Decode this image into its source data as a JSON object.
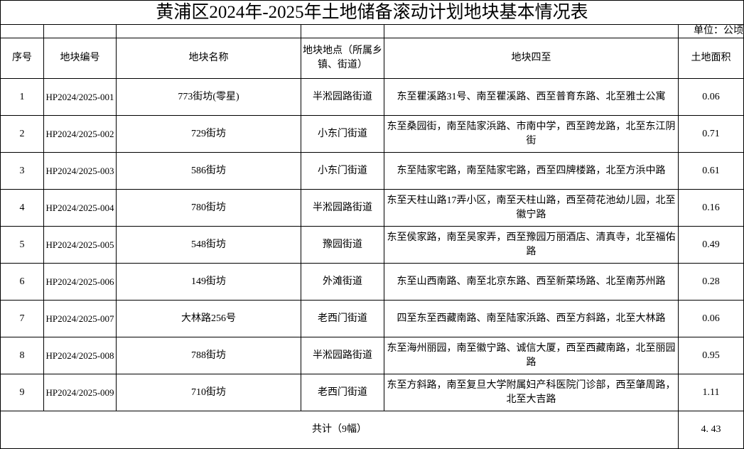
{
  "title": "黄浦区2024年-2025年土地储备滚动计划地块基本情况表",
  "unit": "单位：公顷",
  "headers": {
    "index": "序号",
    "code": "地块编号",
    "name": "地块名称",
    "location": "地块地点（所属乡镇、街道）",
    "boundaries": "地块四至",
    "area": "土地面积"
  },
  "rows": [
    {
      "index": "1",
      "code": "HP2024/2025-001",
      "name": "773街坊(零星)",
      "location": "半淞园路街道",
      "boundaries": "东至瞿溪路31号、南至瞿溪路、西至普育东路、北至雅士公寓",
      "area": "0.06"
    },
    {
      "index": "2",
      "code": "HP2024/2025-002",
      "name": "729街坊",
      "location": "小东门街道",
      "boundaries": "东至桑园街，南至陆家浜路、市南中学，西至跨龙路，北至东江阴街",
      "area": "0.71"
    },
    {
      "index": "3",
      "code": "HP2024/2025-003",
      "name": "586街坊",
      "location": "小东门街道",
      "boundaries": "东至陆家宅路，南至陆家宅路，西至四牌楼路，北至方浜中路",
      "area": "0.61"
    },
    {
      "index": "4",
      "code": "HP2024/2025-004",
      "name": "780街坊",
      "location": "半淞园路街道",
      "boundaries": "东至天柱山路17弄小区，南至天柱山路，西至荷花池幼儿园，北至徽宁路",
      "area": "0.16"
    },
    {
      "index": "5",
      "code": "HP2024/2025-005",
      "name": "548街坊",
      "location": "豫园街道",
      "boundaries": "东至侯家路，南至吴家弄，西至豫园万丽酒店、清真寺，北至福佑路",
      "area": "0.49"
    },
    {
      "index": "6",
      "code": "HP2024/2025-006",
      "name": "149街坊",
      "location": "外滩街道",
      "boundaries": "东至山西南路、南至北京东路、西至新菜场路、北至南苏州路",
      "area": "0.28"
    },
    {
      "index": "7",
      "code": "HP2024/2025-007",
      "name": "大林路256号",
      "location": "老西门街道",
      "boundaries": "四至东至西藏南路、南至陆家浜路、西至方斜路，北至大林路",
      "area": "0.06"
    },
    {
      "index": "8",
      "code": "HP2024/2025-008",
      "name": "788街坊",
      "location": "半淞园路街道",
      "boundaries": "东至海州丽园，南至徽宁路、诚信大厦，西至西藏南路，北至丽园路",
      "area": "0.95"
    },
    {
      "index": "9",
      "code": "HP2024/2025-009",
      "name": "710街坊",
      "location": "老西门街道",
      "boundaries": "东至方斜路，南至复旦大学附属妇产科医院门诊部，西至肇周路，北至大吉路",
      "area": "1.11"
    }
  ],
  "total": {
    "label": "共计（9幅）",
    "area": "4. 43"
  }
}
